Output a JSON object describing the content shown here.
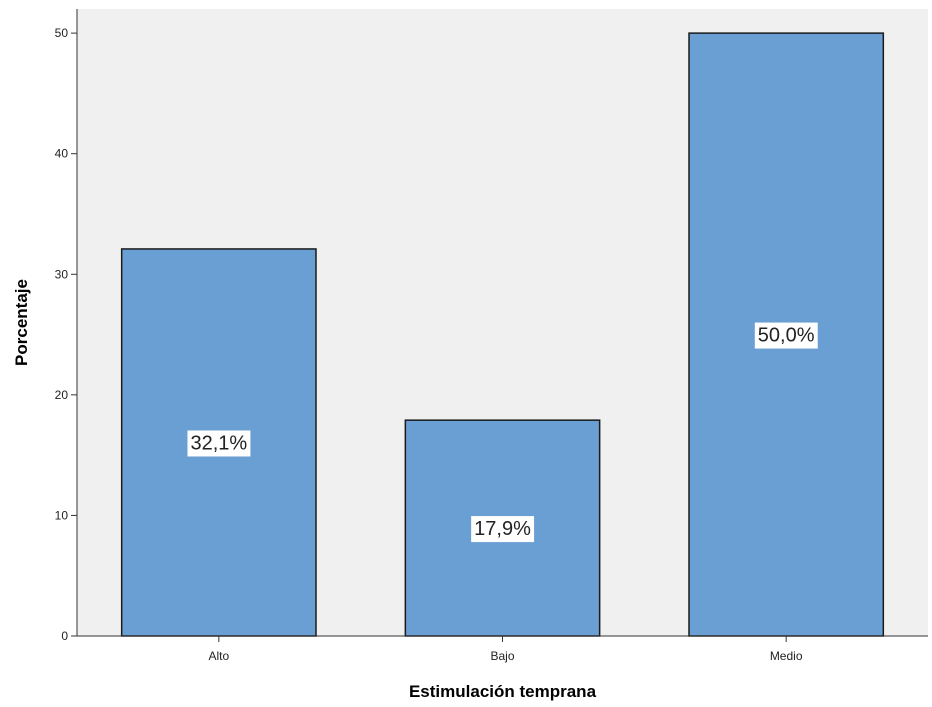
{
  "chart_data": {
    "type": "bar",
    "categories": [
      "Alto",
      "Bajo",
      "Medio"
    ],
    "values": [
      32.1,
      17.9,
      50.0
    ],
    "data_labels": [
      "32,1%",
      "17,9%",
      "50,0%"
    ],
    "title": "",
    "xlabel": "Estimulación temprana",
    "ylabel": "Porcentaje",
    "ylim": [
      0,
      52
    ],
    "yticks": [
      0,
      10,
      20,
      30,
      40,
      50
    ],
    "grid": false,
    "legend": "none",
    "colors": {
      "bar_fill": "#6a9fd4",
      "bar_stroke": "#1a1a1a",
      "plot_background": "#f0f0f0",
      "axis": "#333333"
    }
  }
}
